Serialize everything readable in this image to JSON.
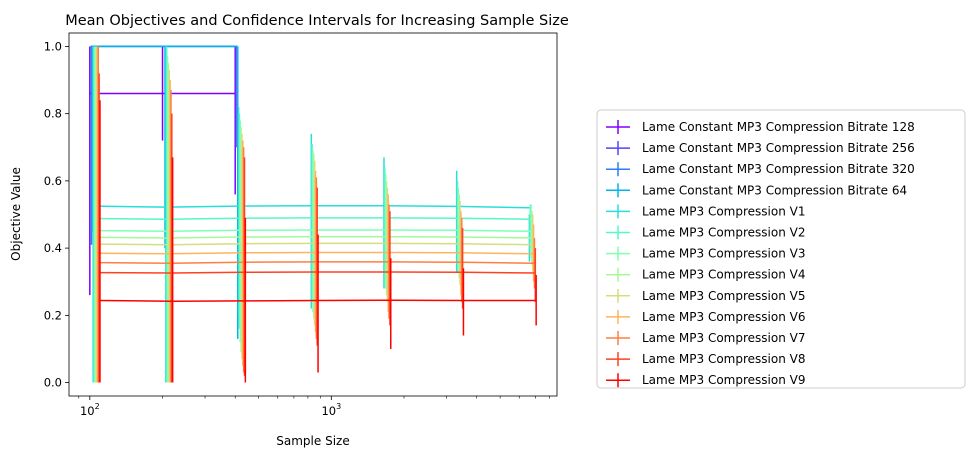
{
  "chart_data": {
    "type": "line",
    "title": "Mean Objectives and Confidence Intervals for Increasing Sample Size",
    "xlabel": "Sample Size",
    "ylabel": "Objective Value",
    "xscale": "log",
    "xlim": [
      82,
      8600
    ],
    "ylim": [
      -0.04,
      1.04
    ],
    "yticks": [
      "0.0",
      "0.2",
      "0.4",
      "0.6",
      "0.8",
      "1.0"
    ],
    "xticks": [
      {
        "base": "10",
        "exp": "2"
      },
      {
        "base": "10",
        "exp": "3"
      }
    ],
    "grid": false,
    "legend": "outside-right",
    "x": [
      100,
      200,
      400,
      800,
      1600,
      3200,
      6400
    ],
    "series": [
      {
        "name": "Lame Constant MP3 Compression Bitrate 128",
        "color": "#8000ff",
        "values": [
          0.86,
          0.86,
          0.86,
          null,
          null,
          null,
          null
        ],
        "ci": [
          [
            0.26,
            1.0
          ],
          [
            0.72,
            1.0
          ],
          [
            0.56,
            1.0
          ],
          null,
          null,
          null,
          null
        ]
      },
      {
        "name": "Lame Constant MP3 Compression Bitrate 256",
        "color": "#5641fd",
        "values": [
          1.0,
          1.0,
          1.0,
          null,
          null,
          null,
          null
        ],
        "ci": [
          [
            1.0,
            1.0
          ],
          [
            1.0,
            1.0
          ],
          [
            0.7,
            1.0
          ],
          null,
          null,
          null,
          null
        ]
      },
      {
        "name": "Lame Constant MP3 Compression Bitrate 320",
        "color": "#2c7ef7",
        "values": [
          1.0,
          1.0,
          1.0,
          null,
          null,
          null,
          null
        ],
        "ci": [
          [
            0.41,
            1.0
          ],
          [
            1.0,
            1.0
          ],
          [
            1.0,
            1.0
          ],
          null,
          null,
          null,
          null
        ]
      },
      {
        "name": "Lame Constant MP3 Compression Bitrate 64",
        "color": "#00b5eb",
        "values": [
          1.0,
          1.0,
          1.0,
          null,
          null,
          null,
          null
        ],
        "ci": [
          [
            0.45,
            1.0
          ],
          [
            0.4,
            1.0
          ],
          [
            0.13,
            1.0
          ],
          null,
          null,
          null,
          null
        ]
      },
      {
        "name": "Lame MP3 Compression V1",
        "color": "#2adddd",
        "values": [
          0.525,
          0.522,
          0.525,
          0.526,
          0.526,
          0.524,
          0.52
        ],
        "ci": [
          [
            0.0,
            1.0
          ],
          [
            0.0,
            1.0
          ],
          [
            0.2,
            0.82
          ],
          [
            0.22,
            0.74
          ],
          [
            0.28,
            0.67
          ],
          [
            0.33,
            0.63
          ],
          [
            0.36,
            0.5
          ]
        ]
      },
      {
        "name": "Lame MP3 Compression V2",
        "color": "#56f8c8",
        "values": [
          0.488,
          0.486,
          0.489,
          0.49,
          0.49,
          0.489,
          0.486
        ],
        "ci": [
          [
            0.0,
            1.0
          ],
          [
            0.0,
            1.0
          ],
          [
            0.16,
            0.8
          ],
          [
            0.24,
            0.71
          ],
          [
            0.3,
            0.64
          ],
          [
            0.35,
            0.6
          ],
          [
            0.4,
            0.53
          ]
        ]
      },
      {
        "name": "Lame MP3 Compression V3",
        "color": "#80ffb4",
        "values": [
          0.452,
          0.45,
          0.453,
          0.454,
          0.454,
          0.453,
          0.45
        ],
        "ci": [
          [
            0.0,
            1.0
          ],
          [
            0.0,
            0.97
          ],
          [
            0.12,
            0.78
          ],
          [
            0.21,
            0.69
          ],
          [
            0.28,
            0.62
          ],
          [
            0.33,
            0.58
          ],
          [
            0.37,
            0.53
          ]
        ]
      },
      {
        "name": "Lame MP3 Compression V4",
        "color": "#a6f898",
        "values": [
          0.432,
          0.43,
          0.433,
          0.434,
          0.434,
          0.433,
          0.43
        ],
        "ci": [
          [
            0.0,
            1.0
          ],
          [
            0.0,
            0.95
          ],
          [
            0.09,
            0.76
          ],
          [
            0.19,
            0.68
          ],
          [
            0.26,
            0.6
          ],
          [
            0.31,
            0.56
          ],
          [
            0.35,
            0.51
          ]
        ]
      },
      {
        "name": "Lame MP3 Compression V5",
        "color": "#d4dd80",
        "values": [
          0.412,
          0.41,
          0.413,
          0.414,
          0.414,
          0.413,
          0.41
        ],
        "ci": [
          [
            0.0,
            1.0
          ],
          [
            0.0,
            0.93
          ],
          [
            0.07,
            0.74
          ],
          [
            0.17,
            0.66
          ],
          [
            0.24,
            0.58
          ],
          [
            0.29,
            0.54
          ],
          [
            0.33,
            0.5
          ]
        ]
      },
      {
        "name": "Lame MP3 Compression V6",
        "color": "#ffb360",
        "values": [
          0.385,
          0.383,
          0.386,
          0.387,
          0.387,
          0.386,
          0.383
        ],
        "ci": [
          [
            0.0,
            1.0
          ],
          [
            0.0,
            0.9
          ],
          [
            0.05,
            0.72
          ],
          [
            0.15,
            0.63
          ],
          [
            0.21,
            0.56
          ],
          [
            0.26,
            0.51
          ],
          [
            0.3,
            0.47
          ]
        ]
      },
      {
        "name": "Lame MP3 Compression V7",
        "color": "#ff7e41",
        "values": [
          0.357,
          0.355,
          0.358,
          0.359,
          0.359,
          0.358,
          0.355
        ],
        "ci": [
          [
            0.0,
            1.0
          ],
          [
            0.0,
            0.87
          ],
          [
            0.03,
            0.7
          ],
          [
            0.13,
            0.61
          ],
          [
            0.19,
            0.53
          ],
          [
            0.24,
            0.49
          ],
          [
            0.28,
            0.43
          ]
        ]
      },
      {
        "name": "Lame MP3 Compression V8",
        "color": "#ff4121",
        "values": [
          0.327,
          0.326,
          0.328,
          0.329,
          0.329,
          0.328,
          0.326
        ],
        "ci": [
          [
            0.0,
            0.92
          ],
          [
            0.0,
            0.8
          ],
          [
            0.02,
            0.67
          ],
          [
            0.11,
            0.58
          ],
          [
            0.17,
            0.51
          ],
          [
            0.22,
            0.46
          ],
          [
            0.24,
            0.4
          ]
        ]
      },
      {
        "name": "Lame MP3 Compression V9",
        "color": "#ff0000",
        "values": [
          0.244,
          0.242,
          0.243,
          0.244,
          0.245,
          0.244,
          0.244
        ],
        "ci": [
          [
            0.0,
            0.84
          ],
          [
            0.0,
            0.67
          ],
          [
            0.0,
            0.49
          ],
          [
            0.03,
            0.44
          ],
          [
            0.1,
            0.37
          ],
          [
            0.14,
            0.34
          ],
          [
            0.17,
            0.32
          ]
        ]
      }
    ]
  }
}
